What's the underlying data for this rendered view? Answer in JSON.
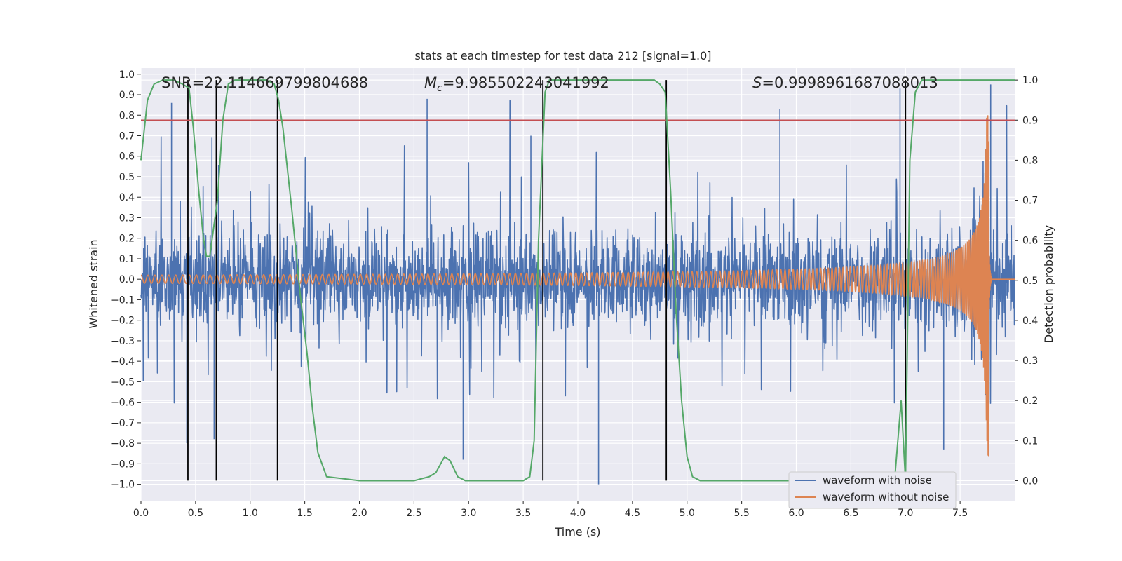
{
  "chart_data": {
    "type": "line",
    "title": "stats at each timestep for test data 212 [signal=1.0]",
    "xlabel": "Time (s)",
    "ylabel_left": "Whitened strain",
    "ylabel_right": "Detection probability",
    "xlim": [
      0.0,
      8.0
    ],
    "ylim_left": [
      -1.08,
      1.03
    ],
    "ylim_right": [
      -0.05,
      1.03
    ],
    "x_ticks": [
      0.0,
      0.5,
      1.0,
      1.5,
      2.0,
      2.5,
      3.0,
      3.5,
      4.0,
      4.5,
      5.0,
      5.5,
      6.0,
      6.5,
      7.0,
      7.5
    ],
    "x_tick_labels": [
      "0.0",
      "0.5",
      "1.0",
      "1.5",
      "2.0",
      "2.5",
      "3.0",
      "3.5",
      "4.0",
      "4.5",
      "5.0",
      "5.5",
      "6.0",
      "6.5",
      "7.0",
      "7.5"
    ],
    "left_ticks": [
      1.0,
      0.9,
      0.8,
      0.7,
      0.6,
      0.5,
      0.4,
      0.3,
      0.2,
      0.1,
      0.0,
      -0.1,
      -0.2,
      -0.3,
      -0.4,
      -0.5,
      -0.6,
      -0.7,
      -0.8,
      -0.9,
      -1.0
    ],
    "left_tick_labels": [
      "1.0",
      "0.9",
      "0.8",
      "0.7",
      "0.6",
      "0.5",
      "0.4",
      "0.3",
      "0.2",
      "0.1",
      "0.0",
      "−0.1",
      "−0.2",
      "−0.3",
      "−0.4",
      "−0.5",
      "−0.6",
      "−0.7",
      "−0.8",
      "−0.9",
      "−1.0"
    ],
    "right_ticks": [
      1.0,
      0.9,
      0.8,
      0.7,
      0.6,
      0.5,
      0.4,
      0.3,
      0.2,
      0.1,
      0.0
    ],
    "right_tick_labels": [
      "1.0",
      "0.9",
      "0.8",
      "0.7",
      "0.6",
      "0.5",
      "0.4",
      "0.3",
      "0.2",
      "0.1",
      "0.0"
    ],
    "annotations": {
      "snr": "SNR=22.114669799804688",
      "mc_symbol": "M",
      "mc_subscript": "c",
      "mc_value": "=9.985502243041992",
      "s_symbol": "S",
      "s_value": "=0.9998961687088013"
    },
    "threshold": {
      "value": 0.9,
      "axis": "right",
      "color": "#c44e52"
    },
    "vertical_markers": [
      0.43,
      0.69,
      1.25,
      3.68,
      4.81,
      7.0
    ],
    "series": [
      {
        "name": "waveform with noise",
        "color": "#4c72b0",
        "axis": "left",
        "description": "dense noisy strain, roughly within -0.45..+0.5 with spikes up to ~0.95 and down to ~-1.0",
        "spikes": [
          [
            0.28,
            0.86
          ],
          [
            0.65,
            0.69
          ],
          [
            1.25,
            0.83
          ],
          [
            2.62,
            0.88
          ],
          [
            3.57,
            0.7
          ],
          [
            4.19,
            -1.0
          ],
          [
            5.85,
            0.83
          ],
          [
            6.95,
            0.93
          ],
          [
            7.78,
            0.95
          ],
          [
            0.42,
            -0.8
          ],
          [
            0.67,
            -0.78
          ],
          [
            2.95,
            -0.88
          ],
          [
            7.35,
            -0.83
          ]
        ]
      },
      {
        "name": "waveform without noise",
        "color": "#dd8452",
        "axis": "left",
        "description": "chirp: small-amplitude oscillation (~0.02) growing to ~0.67 / -0.86 near t=7.76s, then ringdown to 0.0",
        "peak_time": 7.76,
        "peak_max": 0.67,
        "peak_min": -0.86,
        "early_amplitude": 0.02
      },
      {
        "name": "detection probability",
        "color": "#55a868",
        "axis": "right",
        "x": [
          0.0,
          0.06,
          0.12,
          0.2,
          0.3,
          0.38,
          0.44,
          0.48,
          0.53,
          0.57,
          0.6,
          0.63,
          0.7,
          0.75,
          0.8,
          0.86,
          0.95,
          1.0,
          1.15,
          1.22,
          1.26,
          1.3,
          1.38,
          1.46,
          1.52,
          1.57,
          1.62,
          1.7,
          2.0,
          2.5,
          2.64,
          2.7,
          2.74,
          2.78,
          2.83,
          2.9,
          2.97,
          3.05,
          3.3,
          3.5,
          3.56,
          3.6,
          3.64,
          3.7,
          3.74,
          3.8,
          4.0,
          4.5,
          4.7,
          4.75,
          4.8,
          4.85,
          4.9,
          4.95,
          5.0,
          5.05,
          5.12,
          5.2,
          6.0,
          6.9,
          6.96,
          7.0,
          7.04,
          7.09,
          7.15,
          7.2,
          7.5,
          8.0
        ],
        "values": [
          0.8,
          0.95,
          0.99,
          1.0,
          1.0,
          0.99,
          0.98,
          0.88,
          0.72,
          0.61,
          0.56,
          0.56,
          0.7,
          0.9,
          0.99,
          1.0,
          1.0,
          1.0,
          1.0,
          0.99,
          0.95,
          0.88,
          0.68,
          0.46,
          0.32,
          0.18,
          0.07,
          0.01,
          0.0,
          0.0,
          0.01,
          0.02,
          0.04,
          0.06,
          0.05,
          0.01,
          0.0,
          0.0,
          0.0,
          0.0,
          0.01,
          0.1,
          0.6,
          0.97,
          1.0,
          1.0,
          1.0,
          1.0,
          1.0,
          0.99,
          0.97,
          0.72,
          0.42,
          0.2,
          0.06,
          0.01,
          0.0,
          0.0,
          0.0,
          0.0,
          0.2,
          0.0,
          0.8,
          0.97,
          1.0,
          1.0,
          1.0,
          1.0
        ]
      }
    ],
    "legend_position": "lower right",
    "grid": true,
    "colors": {
      "background": "#eaeaf2",
      "grid": "#ffffff",
      "marker": "#000000"
    }
  }
}
